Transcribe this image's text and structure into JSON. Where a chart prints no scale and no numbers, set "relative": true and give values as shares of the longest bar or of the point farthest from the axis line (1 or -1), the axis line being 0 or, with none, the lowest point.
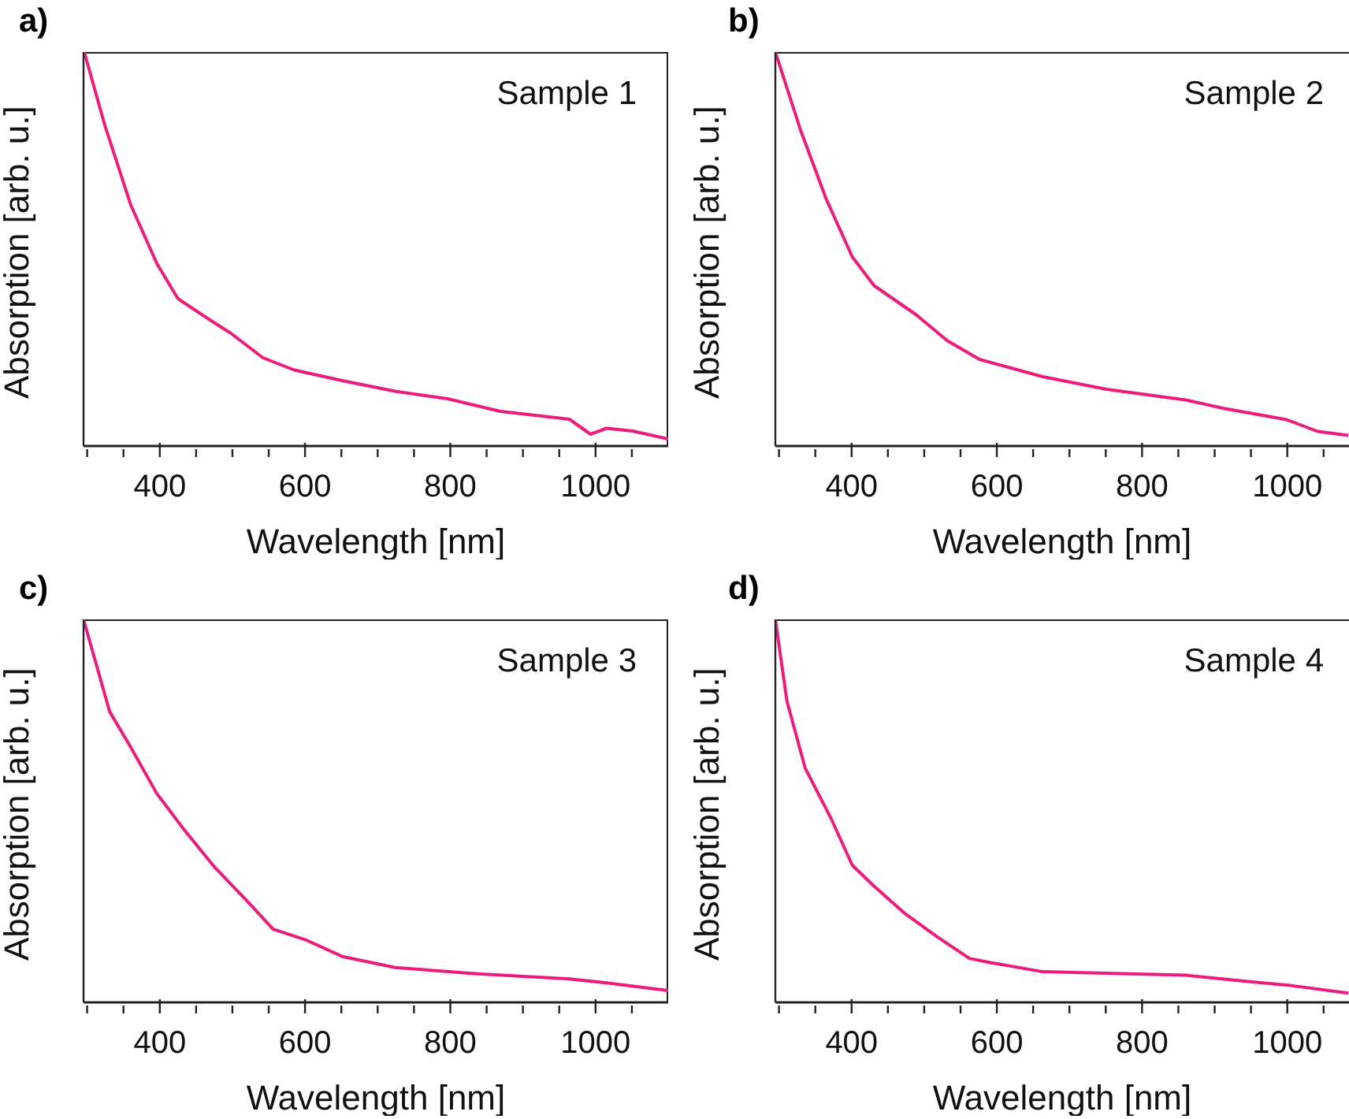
{
  "chart_data": [
    {
      "type": "line",
      "title": "a)",
      "xlabel": "Wavelength [nm]",
      "ylabel": "Absorption [arb. u.]",
      "relative": true,
      "annotations": [
        "Sample 1"
      ],
      "xlim": [
        295,
        1100
      ],
      "xticks": [
        {
          "value": 300,
          "label": null
        },
        {
          "value": 350,
          "label": null
        },
        400,
        {
          "value": 450,
          "label": null
        },
        {
          "value": 500,
          "label": null
        },
        {
          "value": 550,
          "label": null
        },
        600,
        {
          "value": 650,
          "label": null
        },
        {
          "value": 700,
          "label": null
        },
        {
          "value": 750,
          "label": null
        },
        800,
        {
          "value": 850,
          "label": null
        },
        {
          "value": 900,
          "label": null
        },
        {
          "value": 950,
          "label": null
        },
        1000,
        {
          "value": 1050,
          "label": null
        }
      ],
      "grid": false,
      "legend": false,
      "marker": "none",
      "line_style": "solid",
      "series": [
        {
          "color": "#ec1c7c",
          "x": [
            296,
            324,
            360,
            396,
            425,
            469,
            498,
            542,
            585,
            651,
            724,
            796,
            869,
            964,
            993,
            1015,
            1051,
            1100
          ],
          "values": [
            1.0,
            0.816,
            0.612,
            0.463,
            0.374,
            0.32,
            0.286,
            0.224,
            0.193,
            0.166,
            0.139,
            0.12,
            0.088,
            0.068,
            0.03,
            0.045,
            0.038,
            0.018
          ]
        }
      ]
    },
    {
      "type": "line",
      "title": "b)",
      "xlabel": "Wavelength [nm]",
      "ylabel": "Absorption [arb. u.]",
      "relative": true,
      "annotations": [
        "Sample 2"
      ],
      "xlim": [
        295,
        1085
      ],
      "xticks": [
        {
          "value": 300,
          "label": null
        },
        {
          "value": 350,
          "label": null
        },
        400,
        {
          "value": 450,
          "label": null
        },
        {
          "value": 500,
          "label": null
        },
        {
          "value": 550,
          "label": null
        },
        600,
        {
          "value": 650,
          "label": null
        },
        {
          "value": 700,
          "label": null
        },
        {
          "value": 750,
          "label": null
        },
        800,
        {
          "value": 850,
          "label": null
        },
        {
          "value": 900,
          "label": null
        },
        {
          "value": 950,
          "label": null
        },
        1000,
        {
          "value": 1050,
          "label": null
        }
      ],
      "grid": false,
      "legend": false,
      "marker": "none",
      "line_style": "solid",
      "series": [
        {
          "color": "#ec1c7c",
          "x": [
            295,
            330,
            365,
            401,
            431,
            489,
            532,
            576,
            663,
            751,
            860,
            911,
            999,
            1042,
            1084
          ],
          "values": [
            1.0,
            0.8,
            0.627,
            0.48,
            0.407,
            0.333,
            0.267,
            0.22,
            0.176,
            0.144,
            0.117,
            0.096,
            0.067,
            0.037,
            0.027
          ]
        }
      ]
    },
    {
      "type": "line",
      "title": "c)",
      "xlabel": "Wavelength [nm]",
      "ylabel": "Absorption [arb. u.]",
      "relative": true,
      "annotations": [
        "Sample 3"
      ],
      "xlim": [
        295,
        1100
      ],
      "xticks": [
        {
          "value": 300,
          "label": null
        },
        {
          "value": 350,
          "label": null
        },
        400,
        {
          "value": 450,
          "label": null
        },
        {
          "value": 500,
          "label": null
        },
        {
          "value": 550,
          "label": null
        },
        600,
        {
          "value": 650,
          "label": null
        },
        {
          "value": 700,
          "label": null
        },
        {
          "value": 750,
          "label": null
        },
        800,
        {
          "value": 850,
          "label": null
        },
        {
          "value": 900,
          "label": null
        },
        {
          "value": 950,
          "label": null
        },
        1000,
        {
          "value": 1050,
          "label": null
        }
      ],
      "grid": false,
      "legend": false,
      "marker": "none",
      "line_style": "solid",
      "series": [
        {
          "color": "#ec1c7c",
          "x": [
            295,
            331,
            360,
            396,
            433,
            476,
            520,
            556,
            600,
            651,
            724,
            833,
            964,
            1015,
            1100
          ],
          "values": [
            1.0,
            0.759,
            0.666,
            0.545,
            0.452,
            0.352,
            0.265,
            0.191,
            0.164,
            0.12,
            0.091,
            0.075,
            0.061,
            0.051,
            0.031
          ]
        }
      ]
    },
    {
      "type": "line",
      "title": "d)",
      "xlabel": "Wavelength [nm]",
      "ylabel": "Absorption [arb. u.]",
      "relative": true,
      "annotations": [
        "Sample 4"
      ],
      "xlim": [
        295,
        1085
      ],
      "xticks": [
        {
          "value": 300,
          "label": null
        },
        {
          "value": 350,
          "label": null
        },
        400,
        {
          "value": 450,
          "label": null
        },
        {
          "value": 500,
          "label": null
        },
        {
          "value": 550,
          "label": null
        },
        600,
        {
          "value": 650,
          "label": null
        },
        {
          "value": 700,
          "label": null
        },
        {
          "value": 750,
          "label": null
        },
        800,
        {
          "value": 850,
          "label": null
        },
        {
          "value": 900,
          "label": null
        },
        {
          "value": 950,
          "label": null
        },
        1000,
        {
          "value": 1050,
          "label": null
        }
      ],
      "grid": false,
      "legend": false,
      "marker": "none",
      "line_style": "solid",
      "series": [
        {
          "color": "#ec1c7c",
          "x": [
            295,
            311,
            336,
            372,
            401,
            430,
            474,
            518,
            562,
            591,
            663,
            772,
            860,
            954,
            1005,
            1084
          ],
          "values": [
            1.0,
            0.786,
            0.612,
            0.479,
            0.358,
            0.305,
            0.231,
            0.171,
            0.115,
            0.104,
            0.08,
            0.075,
            0.071,
            0.053,
            0.044,
            0.024
          ]
        }
      ]
    }
  ]
}
